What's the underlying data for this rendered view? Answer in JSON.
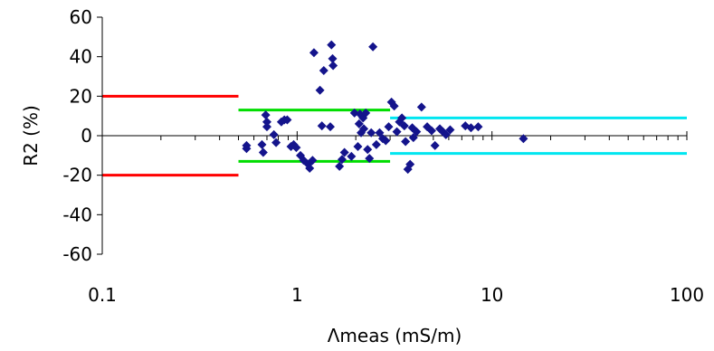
{
  "chart_data": {
    "type": "scatter",
    "xlabel": "Λmeas (mS/m)",
    "ylabel": "R2 (%)",
    "x_scale": "log",
    "xlim": [
      0.1,
      100
    ],
    "ylim": [
      -60,
      60
    ],
    "x_tick_labels": [
      "0.1",
      "1",
      "10",
      "100"
    ],
    "y_tick_labels": [
      "60",
      "40",
      "20",
      "0",
      "-20",
      "-40",
      "-60"
    ],
    "grid": false,
    "marker_color": "#14148c",
    "limit_colors": {
      "red": "#ff0000",
      "green": "#00dd00",
      "cyan": "#00e6f0"
    },
    "limit_lines": [
      {
        "color": "red",
        "x": [
          0.1,
          0.5
        ],
        "y": 20
      },
      {
        "color": "red",
        "x": [
          0.1,
          0.5
        ],
        "y": -20
      },
      {
        "color": "green",
        "x": [
          0.5,
          3
        ],
        "y": 13
      },
      {
        "color": "green",
        "x": [
          0.5,
          3
        ],
        "y": -13
      },
      {
        "color": "cyan",
        "x": [
          3,
          100
        ],
        "y": 9
      },
      {
        "color": "cyan",
        "x": [
          3,
          100
        ],
        "y": -9
      }
    ],
    "points": [
      [
        0.55,
        -5
      ],
      [
        0.55,
        -6.5
      ],
      [
        0.66,
        -4.5
      ],
      [
        0.67,
        -8.5
      ],
      [
        0.69,
        10.5
      ],
      [
        0.7,
        7
      ],
      [
        0.7,
        4.5
      ],
      [
        0.76,
        0.5
      ],
      [
        0.78,
        -3.5
      ],
      [
        0.83,
        7
      ],
      [
        0.86,
        8
      ],
      [
        0.89,
        8
      ],
      [
        0.93,
        -5.5
      ],
      [
        0.96,
        -4.5
      ],
      [
        0.99,
        -6
      ],
      [
        1.04,
        -10
      ],
      [
        1.08,
        -12.5
      ],
      [
        1.14,
        -14.5
      ],
      [
        1.16,
        -16.5
      ],
      [
        1.2,
        -12.5
      ],
      [
        1.22,
        42
      ],
      [
        1.31,
        23
      ],
      [
        1.34,
        5
      ],
      [
        1.37,
        33
      ],
      [
        1.48,
        4.5
      ],
      [
        1.5,
        46
      ],
      [
        1.52,
        39
      ],
      [
        1.53,
        35.5
      ],
      [
        1.65,
        -15.5
      ],
      [
        1.7,
        -12
      ],
      [
        1.75,
        -8.5
      ],
      [
        1.9,
        -10.5
      ],
      [
        1.97,
        11.5
      ],
      [
        2.05,
        -5.5
      ],
      [
        2.08,
        6
      ],
      [
        2.1,
        11
      ],
      [
        2.13,
        1.5
      ],
      [
        2.18,
        9
      ],
      [
        2.2,
        3.5
      ],
      [
        2.25,
        11.5
      ],
      [
        2.3,
        -7
      ],
      [
        2.35,
        -11.5
      ],
      [
        2.4,
        1.5
      ],
      [
        2.45,
        45
      ],
      [
        2.55,
        -4.5
      ],
      [
        2.65,
        1.5
      ],
      [
        2.75,
        -1.5
      ],
      [
        2.85,
        -2.5
      ],
      [
        2.95,
        4.5
      ],
      [
        3.05,
        17
      ],
      [
        3.15,
        15
      ],
      [
        3.25,
        2
      ],
      [
        3.35,
        7
      ],
      [
        3.45,
        9
      ],
      [
        3.55,
        5
      ],
      [
        3.6,
        -3
      ],
      [
        3.7,
        -17
      ],
      [
        3.8,
        -14.5
      ],
      [
        3.9,
        4
      ],
      [
        3.95,
        -1
      ],
      [
        4.1,
        2
      ],
      [
        4.35,
        14.5
      ],
      [
        4.65,
        4.5
      ],
      [
        4.9,
        2.5
      ],
      [
        5.1,
        -5
      ],
      [
        5.4,
        3.5
      ],
      [
        5.6,
        2
      ],
      [
        5.8,
        0.5
      ],
      [
        6.1,
        3
      ],
      [
        7.3,
        5
      ],
      [
        7.8,
        4
      ],
      [
        8.5,
        4.5
      ],
      [
        14.5,
        -1.5
      ]
    ]
  }
}
